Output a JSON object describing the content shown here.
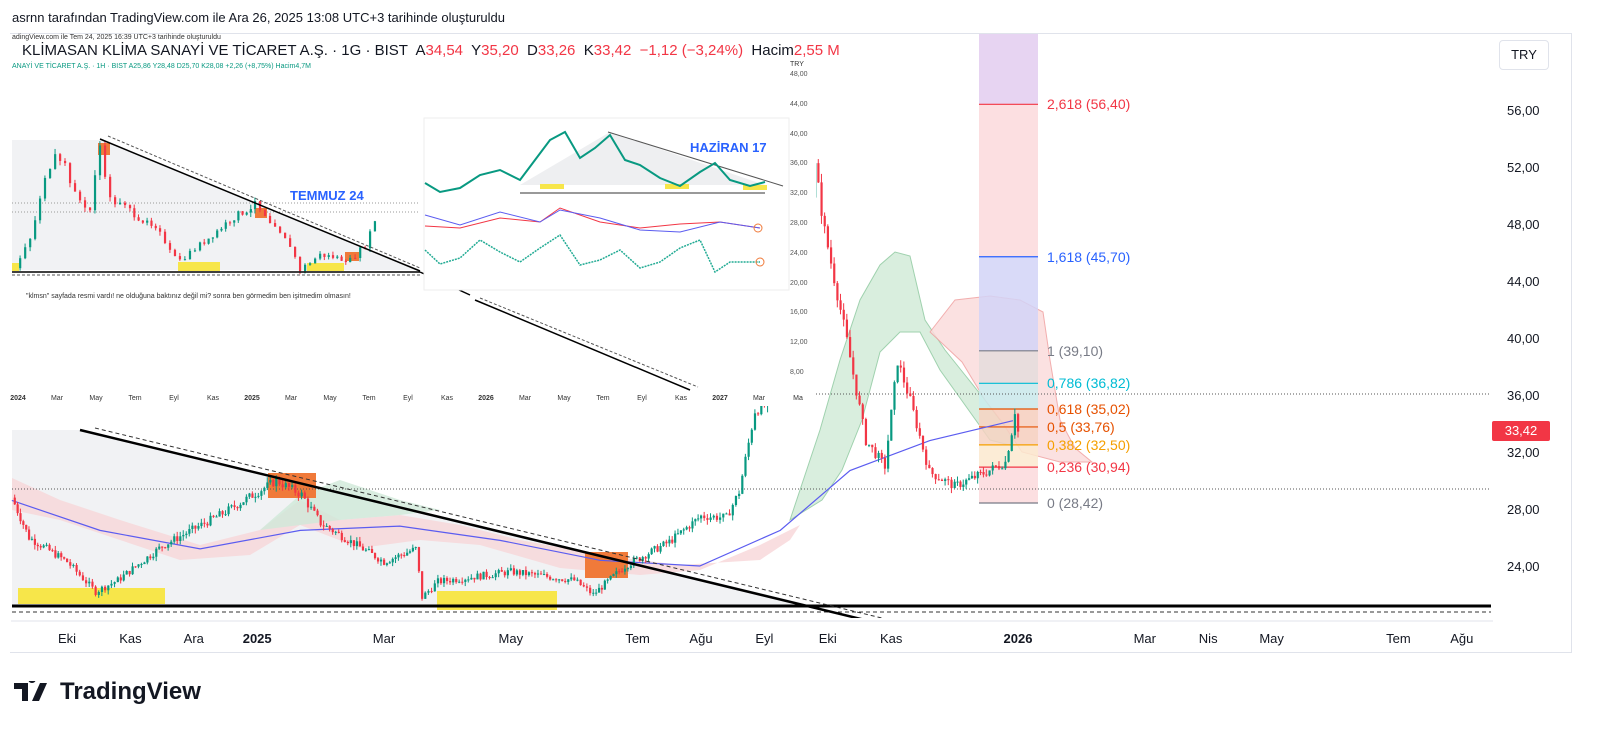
{
  "page_note": "asrnn tarafından TradingView.com ile Ara 26, 2025 13:08 UTC+3 tarihinde oluşturuldu",
  "header": {
    "symbol": "KLİMASAN KLİMA SANAYİ VE TİCARET A.Ş. · 1G · BIST",
    "o_label": "A",
    "o": "34,54",
    "h_label": "Y",
    "h": "35,20",
    "l_label": "D",
    "l": "33,26",
    "c_label": "K",
    "c": "33,42",
    "change": "−1,12 (−3,24%)",
    "vol_label": "Hacim",
    "vol": "2,55 M"
  },
  "currency_button": "TRY",
  "last_price": "33,42",
  "logo": "TradingView",
  "colors": {
    "up": "#089981",
    "down": "#f23645",
    "ma": "#5b5cf0",
    "accent": "#2962ff"
  },
  "chart_data": {
    "type": "candlestick",
    "title": "KLİMASAN KLİMA SANAYİ VE TİCARET A.Ş. · 1G · BIST",
    "y_ticks": [
      "56,00",
      "52,00",
      "48,00",
      "44,00",
      "40,00",
      "36,00",
      "32,00",
      "28,00",
      "24,00"
    ],
    "y_tick_values": [
      56,
      52,
      48,
      44,
      40,
      36,
      32,
      28,
      24
    ],
    "x_ticks": [
      {
        "label": "Eki",
        "t": 0
      },
      {
        "label": "Kas",
        "t": 1
      },
      {
        "label": "Ara",
        "t": 2
      },
      {
        "label": "2025",
        "t": 3,
        "bold": true
      },
      {
        "label": "Mar",
        "t": 5
      },
      {
        "label": "May",
        "t": 7
      },
      {
        "label": "Tem",
        "t": 9
      },
      {
        "label": "Ağu",
        "t": 10
      },
      {
        "label": "Eyl",
        "t": 11
      },
      {
        "label": "Eki",
        "t": 12
      },
      {
        "label": "Kas",
        "t": 13
      },
      {
        "label": "2026",
        "t": 15,
        "bold": true
      },
      {
        "label": "Mar",
        "t": 17
      },
      {
        "label": "Nis",
        "t": 18
      },
      {
        "label": "May",
        "t": 19
      },
      {
        "label": "Tem",
        "t": 21
      },
      {
        "label": "Ağu",
        "t": 22
      }
    ],
    "time_unit": "months since Oct 2024",
    "price_path": [
      [
        -0.87,
        28.8
      ],
      [
        -0.6,
        26
      ],
      [
        0,
        24.3
      ],
      [
        0.45,
        22.2
      ],
      [
        0.8,
        23
      ],
      [
        1.5,
        25.4
      ],
      [
        2.5,
        27.8
      ],
      [
        3.3,
        30
      ],
      [
        3.7,
        29
      ],
      [
        4,
        27
      ],
      [
        5,
        24.3
      ],
      [
        5.5,
        25.2
      ],
      [
        5.6,
        21.8
      ],
      [
        5.85,
        22.9
      ],
      [
        7,
        23.6
      ],
      [
        8,
        23
      ],
      [
        8.3,
        22
      ],
      [
        8.8,
        24
      ],
      [
        9.5,
        25.7
      ],
      [
        10,
        27.5
      ],
      [
        10.4,
        27.4
      ],
      [
        10.6,
        29.2
      ],
      [
        10.85,
        34.9
      ],
      [
        11.1,
        35.5
      ],
      [
        11.3,
        37.5
      ],
      [
        11.55,
        42.6
      ],
      [
        11.8,
        52
      ],
      [
        11.95,
        47.5
      ],
      [
        12.3,
        39.8
      ],
      [
        12.6,
        32.8
      ],
      [
        12.9,
        31
      ],
      [
        13.1,
        38.4
      ],
      [
        13.3,
        35.6
      ],
      [
        13.6,
        30.6
      ],
      [
        14,
        29.6
      ],
      [
        14.5,
        30.6
      ],
      [
        14.8,
        31.3
      ],
      [
        14.9,
        33.4
      ],
      [
        14.95,
        34.9
      ],
      [
        15,
        33.42
      ]
    ],
    "ma_path": [
      [
        -0.87,
        28.6
      ],
      [
        0.52,
        26.5
      ],
      [
        2.1,
        25.2
      ],
      [
        3.68,
        26.5
      ],
      [
        5.25,
        26.8
      ],
      [
        6.83,
        25.8
      ],
      [
        8.41,
        24.4
      ],
      [
        9.98,
        24
      ],
      [
        11.25,
        26.5
      ],
      [
        12.35,
        30.7
      ],
      [
        13.61,
        32.8
      ],
      [
        14.92,
        34.2
      ]
    ],
    "support": 21.5,
    "fibonacci": [
      {
        "level": "2,618",
        "price": 56.4,
        "label": "2,618 (56,40)",
        "color": "#f23645",
        "fill": "#fbd9dc"
      },
      {
        "level": "1,618",
        "price": 45.7,
        "label": "1,618 (45,70)",
        "color": "#2962ff",
        "fill": "#fbd9dc"
      },
      {
        "level": "1",
        "price": 39.1,
        "label": "1 (39,10)",
        "color": "#787b86",
        "fill": "#d2d4f7"
      },
      {
        "level": "0,786",
        "price": 36.82,
        "label": "0,786 (36,82)",
        "color": "#00bcd4",
        "fill": "#e4dcdc"
      },
      {
        "level": "0,618",
        "price": 35.02,
        "label": "0,618 (35,02)",
        "color": "#e65100",
        "fill": "#c9ecee"
      },
      {
        "level": "0,5",
        "price": 33.76,
        "label": "0,5 (33,76)",
        "color": "#e65100",
        "fill": "#f6d2c2"
      },
      {
        "level": "0,382",
        "price": 32.5,
        "label": "0,382 (32,50)",
        "color": "#f59f00",
        "fill": "#f6d2c2"
      },
      {
        "level": "0,236",
        "price": 30.94,
        "label": "0,236 (30,94)",
        "color": "#f23645",
        "fill": "#fbe9cf"
      },
      {
        "level": "0",
        "price": 28.42,
        "label": "0 (28,42)",
        "color": "#787b86",
        "fill": "#fbd9dc"
      }
    ],
    "fib_top_price": 62.6,
    "inset": {
      "note": "adingView.com ile Tem 24, 2025 16:39 UTC+3 tarihinde oluşturuldu",
      "legend": "ANAYİ VE TİCARET A.Ş. · 1H · BIST  A25,86 Y28,48 D25,70 K28,08 +2,26 (+8,75%) Hacim4,7M",
      "tag": "TEMMUZ 24",
      "caption": "\"klmsn\" sayfada resmi vardı! ne olduğuna baktınız değil mi? sonra ben görmedim ben işitmedim olmasın!",
      "currency": "TRY",
      "y_ticks": [
        "48,00",
        "44,00",
        "40,00",
        "36,00",
        "32,00",
        "28,00",
        "24,00",
        "20,00",
        "16,00",
        "12,00",
        "8,00"
      ],
      "x_ticks": [
        "2024",
        "Mar",
        "May",
        "Tem",
        "Eyl",
        "Kas",
        "2025",
        "Mar",
        "May",
        "Tem",
        "Eyl",
        "Kas",
        "2026",
        "Mar",
        "May",
        "Tem",
        "Eyl",
        "Kas",
        "2027",
        "Mar",
        "Ma"
      ],
      "price_path": [
        [
          -0.15,
          21.8
        ],
        [
          0.62,
          25.6
        ],
        [
          1.38,
          33.6
        ],
        [
          1.9,
          37.7
        ],
        [
          2.41,
          35.7
        ],
        [
          2.92,
          31.6
        ],
        [
          3.69,
          29.6
        ],
        [
          4.2,
          38.3
        ],
        [
          4.72,
          31
        ],
        [
          5.74,
          29.6
        ],
        [
          7.28,
          26.3
        ],
        [
          8.3,
          22.9
        ],
        [
          9.33,
          24.9
        ],
        [
          10.87,
          28.3
        ],
        [
          12.15,
          30.3
        ],
        [
          12.92,
          27.6
        ],
        [
          13.95,
          24.9
        ],
        [
          14.46,
          21.6
        ],
        [
          15.49,
          23.6
        ],
        [
          17.03,
          22.9
        ],
        [
          17.8,
          24.9
        ],
        [
          18.3,
          28.3
        ]
      ],
      "nested_tag": "HAZİRAN 17"
    }
  }
}
